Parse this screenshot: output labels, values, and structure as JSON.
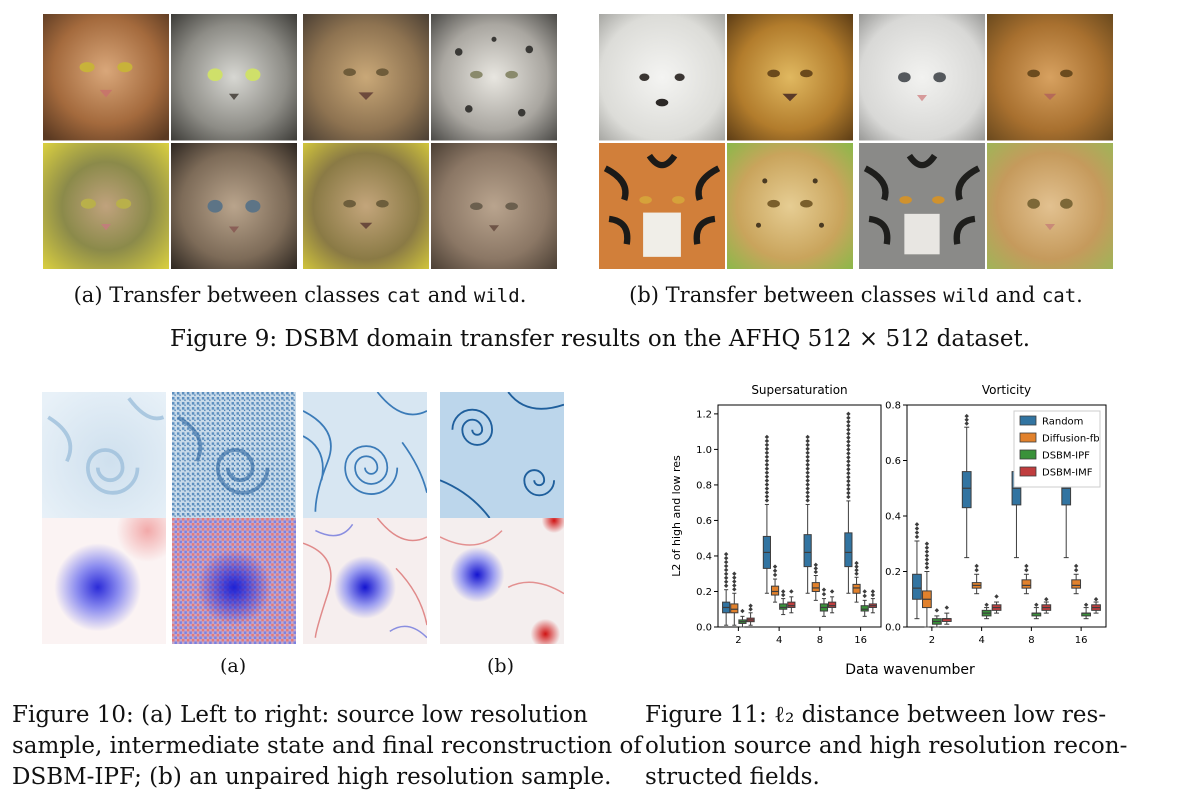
{
  "fig9": {
    "sub_a": {
      "prefix": "(a) Transfer between classes ",
      "class1": "cat",
      "mid": " and ",
      "class2": "wild",
      "suffix": "."
    },
    "sub_b": {
      "prefix": "(b) Transfer between classes ",
      "class1": "wild",
      "mid": " and ",
      "class2": "cat",
      "suffix": "."
    },
    "caption": "Figure 9: DSBM domain transfer results on the AFHQ 512 × 512 dataset."
  },
  "fig10": {
    "label_a": "(a)",
    "label_b": "(b)",
    "caption_lines": [
      "Figure 10: (a) Left to right: source low resolution",
      "sample, intermediate state and final reconstruction of",
      "DSBM-IPF; (b) an unpaired high resolution sample."
    ]
  },
  "fig11": {
    "caption_lines": [
      "Figure 11:  ℓ₂  distance between low res-",
      "olution source and high resolution recon-",
      "structed fields."
    ]
  },
  "chart_data": [
    {
      "type": "box",
      "title": "Supersaturation",
      "xlabel": "Data wavenumber",
      "ylabel": "L2 of high and low res",
      "categories": [
        "2",
        "4",
        "8",
        "16"
      ],
      "ylim": [
        0,
        1.25
      ],
      "yticks": [
        "0.0",
        "0.2",
        "0.4",
        "0.6",
        "0.8",
        "1.0",
        "1.2"
      ],
      "series": [
        {
          "name": "Random",
          "color": "#3274a1",
          "medians": [
            0.11,
            0.42,
            0.42,
            0.42
          ],
          "q1": [
            0.08,
            0.33,
            0.34,
            0.34
          ],
          "q3": [
            0.14,
            0.51,
            0.52,
            0.53
          ],
          "whisker_low": [
            0.01,
            0.19,
            0.19,
            0.19
          ],
          "whisker_high": [
            0.21,
            0.69,
            0.69,
            0.71
          ],
          "outlier_max": [
            0.41,
            1.07,
            1.07,
            1.2
          ]
        },
        {
          "name": "Diffusion-fb",
          "color": "#e1812c",
          "medians": [
            0.1,
            0.2,
            0.22,
            0.22
          ],
          "q1": [
            0.08,
            0.18,
            0.2,
            0.19
          ],
          "q3": [
            0.13,
            0.23,
            0.25,
            0.24
          ],
          "whisker_low": [
            0.01,
            0.14,
            0.15,
            0.14
          ],
          "whisker_high": [
            0.19,
            0.27,
            0.29,
            0.28
          ],
          "outlier_max": [
            0.3,
            0.34,
            0.35,
            0.36
          ]
        },
        {
          "name": "DSBM-IPF",
          "color": "#3a923a",
          "medians": [
            0.03,
            0.11,
            0.11,
            0.1
          ],
          "q1": [
            0.02,
            0.1,
            0.09,
            0.09
          ],
          "q3": [
            0.04,
            0.13,
            0.13,
            0.12
          ],
          "whisker_low": [
            0.0,
            0.07,
            0.06,
            0.06
          ],
          "whisker_high": [
            0.06,
            0.16,
            0.16,
            0.15
          ],
          "outlier_max": [
            0.09,
            0.2,
            0.21,
            0.2
          ]
        },
        {
          "name": "DSBM-IMF",
          "color": "#c03d3e",
          "medians": [
            0.04,
            0.12,
            0.12,
            0.12
          ],
          "q1": [
            0.03,
            0.11,
            0.11,
            0.11
          ],
          "q3": [
            0.05,
            0.14,
            0.14,
            0.13
          ],
          "whisker_low": [
            0.01,
            0.08,
            0.08,
            0.08
          ],
          "whisker_high": [
            0.08,
            0.17,
            0.17,
            0.16
          ],
          "outlier_max": [
            0.12,
            0.2,
            0.2,
            0.2
          ]
        }
      ]
    },
    {
      "type": "box",
      "title": "Vorticity",
      "xlabel": "Data wavenumber",
      "categories": [
        "2",
        "4",
        "8",
        "16"
      ],
      "ylim": [
        0,
        0.8
      ],
      "yticks": [
        "0.0",
        "0.2",
        "0.4",
        "0.6",
        "0.8"
      ],
      "legend": "top-right",
      "series": [
        {
          "name": "Random",
          "color": "#3274a1",
          "medians": [
            0.14,
            0.5,
            0.5,
            0.5
          ],
          "q1": [
            0.1,
            0.43,
            0.44,
            0.44
          ],
          "q3": [
            0.19,
            0.56,
            0.56,
            0.56
          ],
          "whisker_low": [
            0.03,
            0.25,
            0.25,
            0.25
          ],
          "whisker_high": [
            0.31,
            0.72,
            0.73,
            0.71
          ],
          "outlier_max": [
            0.37,
            0.76,
            0.76,
            0.76
          ]
        },
        {
          "name": "Diffusion-fb",
          "color": "#e1812c",
          "medians": [
            0.1,
            0.15,
            0.15,
            0.15
          ],
          "q1": [
            0.07,
            0.14,
            0.14,
            0.14
          ],
          "q3": [
            0.13,
            0.16,
            0.17,
            0.17
          ],
          "whisker_low": [
            0.0,
            0.12,
            0.12,
            0.12
          ],
          "whisker_high": [
            0.2,
            0.19,
            0.19,
            0.19
          ],
          "outlier_max": [
            0.3,
            0.22,
            0.22,
            0.22
          ]
        },
        {
          "name": "DSBM-IPF",
          "color": "#3a923a",
          "medians": [
            0.02,
            0.05,
            0.05,
            0.05
          ],
          "q1": [
            0.01,
            0.04,
            0.04,
            0.04
          ],
          "q3": [
            0.03,
            0.06,
            0.05,
            0.05
          ],
          "whisker_low": [
            0.0,
            0.03,
            0.03,
            0.03
          ],
          "whisker_high": [
            0.04,
            0.07,
            0.07,
            0.07
          ],
          "outlier_max": [
            0.06,
            0.08,
            0.08,
            0.08
          ]
        },
        {
          "name": "DSBM-IMF",
          "color": "#c03d3e",
          "medians": [
            0.03,
            0.07,
            0.07,
            0.07
          ],
          "q1": [
            0.02,
            0.06,
            0.06,
            0.06
          ],
          "q3": [
            0.03,
            0.08,
            0.08,
            0.08
          ],
          "whisker_low": [
            0.01,
            0.05,
            0.05,
            0.05
          ],
          "whisker_high": [
            0.05,
            0.09,
            0.09,
            0.09
          ],
          "outlier_max": [
            0.07,
            0.11,
            0.1,
            0.1
          ]
        }
      ]
    }
  ]
}
